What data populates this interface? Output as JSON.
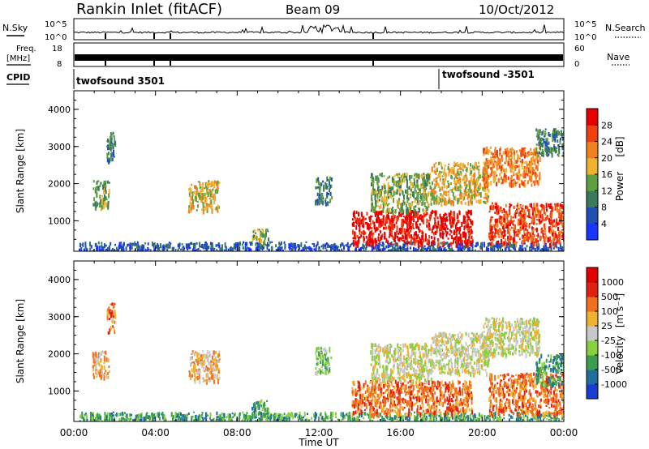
{
  "header": {
    "title": "Rankin Inlet (fitACF)",
    "beam": "Beam 09",
    "date": "10/Oct/2012"
  },
  "top_panels": {
    "nsky_label": "N.Sky",
    "nsearch_label": "N.Search",
    "noise_ticks_left": [
      "10^5",
      "10^0"
    ],
    "noise_ticks_right": [
      "10^5",
      "10^0"
    ],
    "freq_label": "Freq.",
    "freq_unit": "[MHz]",
    "freq_ticks": [
      "8",
      "18"
    ],
    "nave_label": "Nave",
    "nave_ticks": [
      "60",
      "0"
    ],
    "cpid_label": "CPID",
    "cpid_segments": [
      {
        "name": "twofsound 3501",
        "start_hour": 0
      },
      {
        "name": "twofsound -3501",
        "start_hour": 18
      }
    ]
  },
  "x_axis": {
    "label": "Time UT",
    "ticks": [
      "00:00",
      "04:00",
      "08:00",
      "12:00",
      "16:00",
      "20:00",
      "00:00"
    ]
  },
  "chart_data": [
    {
      "type": "heatmap",
      "parameter": "Power",
      "xlabel": "Time UT",
      "ylabel": "Slant Range [km]",
      "xlim": [
        0,
        24
      ],
      "ylim": [
        180,
        4500
      ],
      "y_ticks": [
        1000,
        2000,
        3000,
        4000
      ],
      "colorbar": {
        "label": "Power",
        "unit": "[dB]",
        "ticks": [
          "4",
          "8",
          "12",
          "16",
          "20",
          "24",
          "28"
        ],
        "colors": [
          "#1a33ff",
          "#1f4fb3",
          "#3a7a5c",
          "#5ea040",
          "#f0b030",
          "#f08020",
          "#f04010",
          "#e80000"
        ]
      },
      "echo_regions": [
        {
          "t0": 0.2,
          "t1": 24.0,
          "r0": 180,
          "r1": 450,
          "level": 1
        },
        {
          "t0": 0.9,
          "t1": 1.7,
          "r0": 1400,
          "r1": 2100,
          "level": 3
        },
        {
          "t0": 1.6,
          "t1": 2.0,
          "r0": 2600,
          "r1": 3400,
          "level": 2
        },
        {
          "t0": 5.6,
          "t1": 7.1,
          "r0": 1300,
          "r1": 2100,
          "level": 4
        },
        {
          "t0": 8.7,
          "t1": 9.5,
          "r0": 400,
          "r1": 800,
          "level": 3
        },
        {
          "t0": 11.8,
          "t1": 12.6,
          "r0": 1500,
          "r1": 2200,
          "level": 2
        },
        {
          "t0": 13.6,
          "t1": 19.5,
          "r0": 400,
          "r1": 1300,
          "level": 7
        },
        {
          "t0": 14.5,
          "t1": 17.5,
          "r0": 1300,
          "r1": 2300,
          "level": 3
        },
        {
          "t0": 17.5,
          "t1": 20.3,
          "r0": 1500,
          "r1": 2600,
          "level": 4
        },
        {
          "t0": 20.0,
          "t1": 22.8,
          "r0": 2000,
          "r1": 3000,
          "level": 5
        },
        {
          "t0": 20.3,
          "t1": 24.0,
          "r0": 400,
          "r1": 1500,
          "level": 6
        },
        {
          "t0": 22.6,
          "t1": 24.0,
          "r0": 2800,
          "r1": 3500,
          "level": 2
        }
      ]
    },
    {
      "type": "heatmap",
      "parameter": "Velocity",
      "xlabel": "Time UT",
      "ylabel": "Slant Range [km]",
      "xlim": [
        0,
        24
      ],
      "ylim": [
        180,
        4500
      ],
      "y_ticks": [
        1000,
        2000,
        3000,
        4000
      ],
      "colorbar": {
        "label": "Velocity",
        "unit": "[m s⁻¹]",
        "ticks": [
          "1000",
          "500",
          "100",
          "25",
          "-25",
          "-100",
          "-500",
          "-1000"
        ],
        "colors": [
          "#1a3cd0",
          "#1e6ea0",
          "#3c9c50",
          "#88d040",
          "#c8c8c8",
          "#f0b030",
          "#f07020",
          "#e02010",
          "#e00000"
        ]
      },
      "echo_regions": [
        {
          "t0": 0.2,
          "t1": 24.0,
          "r0": 180,
          "r1": 450,
          "level": 2
        },
        {
          "t0": 0.9,
          "t1": 1.7,
          "r0": 1400,
          "r1": 2100,
          "level": 5
        },
        {
          "t0": 1.6,
          "t1": 2.0,
          "r0": 2600,
          "r1": 3400,
          "level": 6
        },
        {
          "t0": 5.6,
          "t1": 7.1,
          "r0": 1300,
          "r1": 2100,
          "level": 5
        },
        {
          "t0": 8.7,
          "t1": 9.5,
          "r0": 400,
          "r1": 800,
          "level": 2
        },
        {
          "t0": 11.8,
          "t1": 12.6,
          "r0": 1500,
          "r1": 2200,
          "level": 3
        },
        {
          "t0": 13.6,
          "t1": 19.5,
          "r0": 400,
          "r1": 1300,
          "level": 6
        },
        {
          "t0": 14.5,
          "t1": 17.5,
          "r0": 1300,
          "r1": 2300,
          "level": 4
        },
        {
          "t0": 17.5,
          "t1": 20.3,
          "r0": 1500,
          "r1": 2600,
          "level": 4
        },
        {
          "t0": 20.0,
          "t1": 22.8,
          "r0": 2000,
          "r1": 3000,
          "level": 4
        },
        {
          "t0": 20.3,
          "t1": 24.0,
          "r0": 400,
          "r1": 1500,
          "level": 6
        },
        {
          "t0": 22.6,
          "t1": 24.0,
          "r0": 1200,
          "r1": 2000,
          "level": 2
        }
      ]
    }
  ]
}
